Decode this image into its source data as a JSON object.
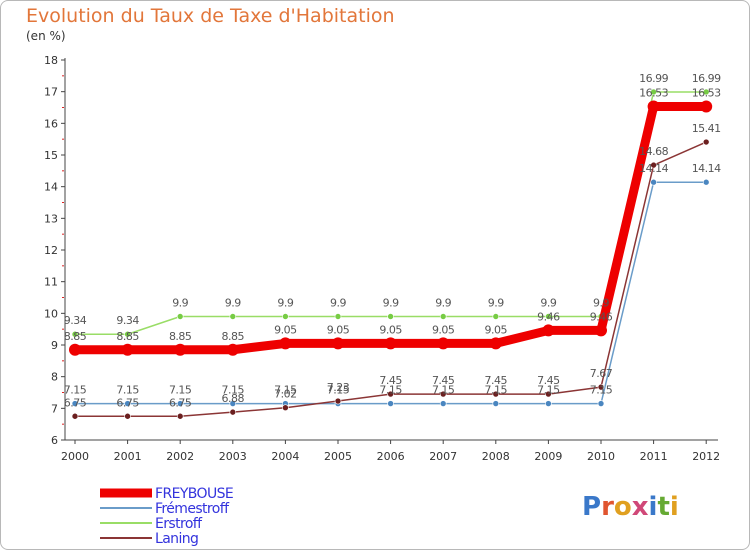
{
  "chart_data": {
    "type": "line",
    "title": "Evolution du Taux de Taxe d'Habitation",
    "subtitle": "(en %)",
    "xlabel": "",
    "ylabel": "",
    "x": [
      "2000",
      "2001",
      "2002",
      "2003",
      "2004",
      "2005",
      "2006",
      "2007",
      "2008",
      "2009",
      "2010",
      "2011",
      "2012"
    ],
    "ylim": [
      6,
      18
    ],
    "yticks": [
      "6",
      "7",
      "8",
      "9",
      "10",
      "11",
      "12",
      "13",
      "14",
      "15",
      "16",
      "17",
      "18"
    ],
    "grid": false,
    "legend_position": "bottom-left",
    "series": [
      {
        "name": "FREYBOUSE",
        "color": "#ee0000",
        "values": [
          8.85,
          8.85,
          8.85,
          8.85,
          9.05,
          9.05,
          9.05,
          9.05,
          9.05,
          9.46,
          9.46,
          16.53,
          16.53
        ],
        "labels": [
          "8.85",
          "8.85",
          "8.85",
          "8.85",
          "9.05",
          "9.05",
          "9.05",
          "9.05",
          "9.05",
          "9.46",
          "9.46",
          "16.53",
          "16.53"
        ]
      },
      {
        "name": "Frémestroff",
        "color": "#5b9bd5",
        "values": [
          7.15,
          7.15,
          7.15,
          7.15,
          7.15,
          7.15,
          7.15,
          7.15,
          7.15,
          7.15,
          7.15,
          14.14,
          14.14
        ],
        "labels": [
          "7.15",
          "7.15",
          "7.15",
          "7.15",
          "7.15",
          "7.15",
          "7.15",
          "7.15",
          "7.15",
          "7.15",
          "7.15",
          "14.14",
          "14.14"
        ]
      },
      {
        "name": "Erstroff",
        "color": "#99dd66",
        "values": [
          9.34,
          9.34,
          9.9,
          9.9,
          9.9,
          9.9,
          9.9,
          9.9,
          9.9,
          9.9,
          9.9,
          16.99,
          16.99
        ],
        "labels": [
          "9.34",
          "9.34",
          "9.9",
          "9.9",
          "9.9",
          "9.9",
          "9.9",
          "9.9",
          "9.9",
          "9.9",
          "9.9",
          "16.99",
          "16.99"
        ]
      },
      {
        "name": "Laning",
        "color": "#8b2e2e",
        "values": [
          6.75,
          6.75,
          6.75,
          6.88,
          7.02,
          7.23,
          7.45,
          7.45,
          7.45,
          7.45,
          7.67,
          14.68,
          15.41
        ],
        "labels": [
          "6.75",
          "6.75",
          "6.75",
          "6.88",
          "7.02",
          "7.23",
          "7.45",
          "7.45",
          "7.45",
          "7.45",
          "7.67",
          "14.68",
          "15.41"
        ]
      }
    ]
  },
  "legend": {
    "items": [
      "FREYBOUSE",
      "Frémestroff",
      "Erstroff",
      "Laning"
    ],
    "text_color": "#3333dd"
  },
  "logo": {
    "text": "Proxiti"
  }
}
